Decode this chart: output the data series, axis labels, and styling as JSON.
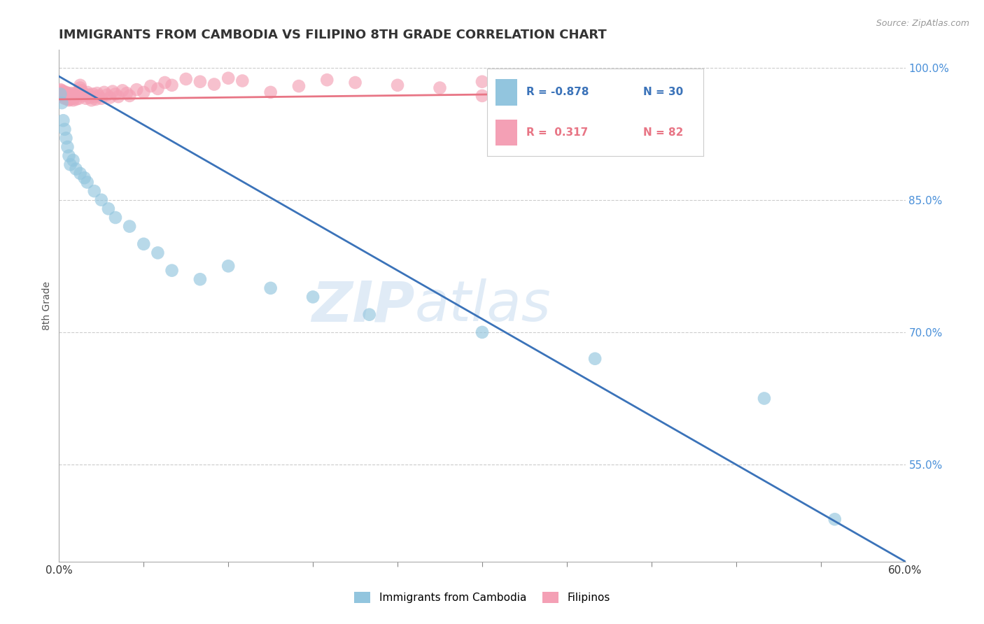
{
  "title": "IMMIGRANTS FROM CAMBODIA VS FILIPINO 8TH GRADE CORRELATION CHART",
  "source": "Source: ZipAtlas.com",
  "ylabel": "8th Grade",
  "xlim": [
    0.0,
    0.6
  ],
  "ylim": [
    0.44,
    1.02
  ],
  "blue_R": -0.878,
  "blue_N": 30,
  "pink_R": 0.317,
  "pink_N": 82,
  "blue_color": "#92C5DE",
  "pink_color": "#F4A0B5",
  "blue_line_color": "#3B73B9",
  "pink_line_color": "#E87585",
  "watermark_zip": "ZIP",
  "watermark_atlas": "atlas",
  "legend_label_blue": "Immigrants from Cambodia",
  "legend_label_pink": "Filipinos",
  "blue_scatter_x": [
    0.001,
    0.002,
    0.003,
    0.004,
    0.005,
    0.006,
    0.007,
    0.008,
    0.01,
    0.012,
    0.015,
    0.018,
    0.02,
    0.025,
    0.03,
    0.035,
    0.04,
    0.05,
    0.06,
    0.07,
    0.08,
    0.1,
    0.12,
    0.15,
    0.18,
    0.22,
    0.3,
    0.38,
    0.5,
    0.55
  ],
  "blue_scatter_y": [
    0.97,
    0.96,
    0.94,
    0.93,
    0.92,
    0.91,
    0.9,
    0.89,
    0.895,
    0.885,
    0.88,
    0.875,
    0.87,
    0.86,
    0.85,
    0.84,
    0.83,
    0.82,
    0.8,
    0.79,
    0.77,
    0.76,
    0.775,
    0.75,
    0.74,
    0.72,
    0.7,
    0.67,
    0.625,
    0.488
  ],
  "pink_scatter_x": [
    0.001,
    0.001,
    0.001,
    0.002,
    0.002,
    0.002,
    0.003,
    0.003,
    0.003,
    0.003,
    0.004,
    0.004,
    0.004,
    0.005,
    0.005,
    0.005,
    0.006,
    0.006,
    0.006,
    0.007,
    0.007,
    0.007,
    0.008,
    0.008,
    0.009,
    0.009,
    0.01,
    0.01,
    0.01,
    0.011,
    0.012,
    0.012,
    0.013,
    0.014,
    0.015,
    0.015,
    0.016,
    0.017,
    0.018,
    0.019,
    0.02,
    0.021,
    0.022,
    0.023,
    0.024,
    0.025,
    0.026,
    0.027,
    0.028,
    0.03,
    0.032,
    0.034,
    0.036,
    0.038,
    0.04,
    0.042,
    0.045,
    0.048,
    0.05,
    0.055,
    0.06,
    0.065,
    0.07,
    0.075,
    0.08,
    0.09,
    0.1,
    0.11,
    0.12,
    0.13,
    0.15,
    0.17,
    0.19,
    0.21,
    0.24,
    0.27,
    0.3,
    0.33,
    0.36,
    0.4,
    0.44,
    0.3
  ],
  "pink_scatter_y": [
    0.97,
    0.968,
    0.975,
    0.972,
    0.969,
    0.974,
    0.971,
    0.968,
    0.966,
    0.973,
    0.97,
    0.967,
    0.965,
    0.972,
    0.969,
    0.967,
    0.964,
    0.971,
    0.968,
    0.965,
    0.963,
    0.97,
    0.967,
    0.964,
    0.971,
    0.968,
    0.965,
    0.963,
    0.97,
    0.967,
    0.964,
    0.971,
    0.968,
    0.965,
    0.98,
    0.977,
    0.974,
    0.971,
    0.968,
    0.965,
    0.972,
    0.969,
    0.966,
    0.963,
    0.97,
    0.967,
    0.964,
    0.971,
    0.968,
    0.965,
    0.972,
    0.969,
    0.966,
    0.973,
    0.97,
    0.967,
    0.974,
    0.971,
    0.968,
    0.975,
    0.972,
    0.979,
    0.976,
    0.983,
    0.98,
    0.987,
    0.984,
    0.981,
    0.988,
    0.985,
    0.972,
    0.979,
    0.986,
    0.983,
    0.98,
    0.977,
    0.984,
    0.981,
    0.978,
    0.985,
    0.982,
    0.968
  ],
  "blue_trend_x": [
    0.0,
    0.6
  ],
  "blue_trend_y": [
    0.99,
    0.44
  ],
  "pink_trend_x": [
    0.0,
    0.44
  ],
  "pink_trend_y": [
    0.964,
    0.972
  ],
  "grid_color": "#CCCCCC",
  "title_color": "#333333",
  "axis_color": "#555555",
  "right_ytick_color": "#4A90D9",
  "ytick_positions": [
    0.55,
    0.7,
    0.85,
    1.0
  ],
  "ytick_labels": [
    "55.0%",
    "70.0%",
    "85.0%",
    "100.0%"
  ]
}
